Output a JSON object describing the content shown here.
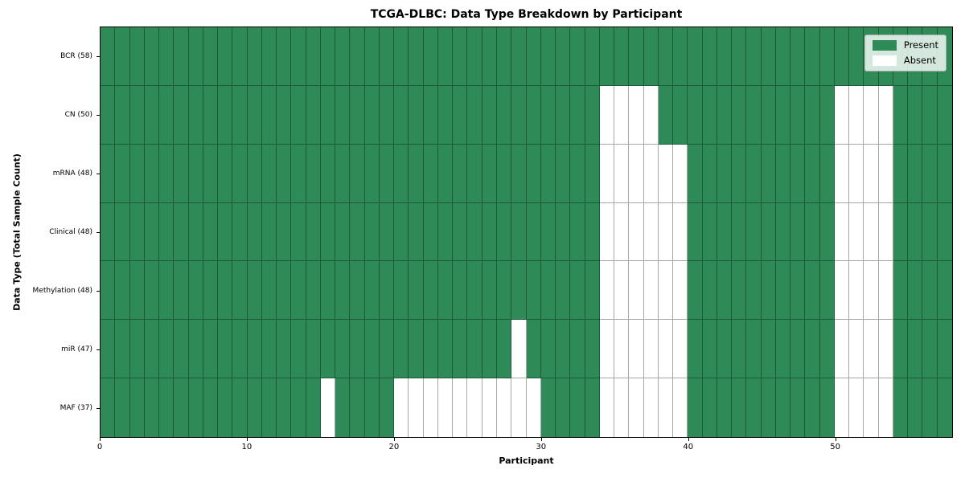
{
  "figure_title": "TCGA-DLBC: Data Type Breakdown by Participant",
  "chart_data": {
    "type": "heatmap",
    "title": "TCGA-DLBC: Data Type Breakdown by Participant",
    "xlabel": "Participant",
    "ylabel": "Data Type (Total Sample Count)",
    "x_ticks": [
      0,
      10,
      20,
      30,
      40,
      50
    ],
    "x_range": [
      0,
      58
    ],
    "participants": 58,
    "present_color": "#2e8b57",
    "absent_color": "#ffffff",
    "grid": "on",
    "legend_position": "upper right",
    "rows": [
      {
        "label": "BCR (58)",
        "data_type": "BCR",
        "present_total": 58,
        "absent_participants": []
      },
      {
        "label": "CN (50)",
        "data_type": "CN",
        "present_total": 50,
        "absent_participants": [
          34,
          35,
          36,
          37,
          50,
          51,
          52,
          53
        ]
      },
      {
        "label": "mRNA (48)",
        "data_type": "mRNA",
        "present_total": 48,
        "absent_participants": [
          34,
          35,
          36,
          37,
          38,
          39,
          50,
          51,
          52,
          53
        ]
      },
      {
        "label": "Clinical (48)",
        "data_type": "Clinical",
        "present_total": 48,
        "absent_participants": [
          34,
          35,
          36,
          37,
          38,
          39,
          50,
          51,
          52,
          53
        ]
      },
      {
        "label": "Methylation (48)",
        "data_type": "Methylation",
        "present_total": 48,
        "absent_participants": [
          34,
          35,
          36,
          37,
          38,
          39,
          50,
          51,
          52,
          53
        ]
      },
      {
        "label": "miR (47)",
        "data_type": "miR",
        "present_total": 47,
        "absent_participants": [
          28,
          34,
          35,
          36,
          37,
          38,
          39,
          50,
          51,
          52,
          53
        ]
      },
      {
        "label": "MAF (37)",
        "data_type": "MAF",
        "present_total": 37,
        "absent_participants": [
          15,
          20,
          21,
          22,
          23,
          24,
          25,
          26,
          27,
          28,
          29,
          34,
          35,
          36,
          37,
          38,
          39,
          50,
          51,
          52,
          53
        ]
      }
    ],
    "legend": [
      {
        "label": "Present",
        "color": "#2e8b57"
      },
      {
        "label": "Absent",
        "color": "#ffffff"
      }
    ]
  }
}
